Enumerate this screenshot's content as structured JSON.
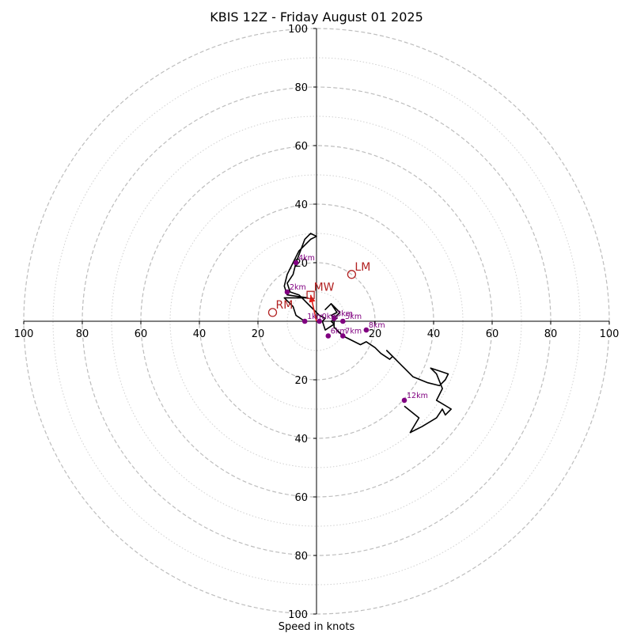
{
  "chart_data": {
    "type": "hodograph",
    "title": "KBIS 12Z - Friday August 01 2025",
    "xlabel": "Speed in knots",
    "ylabel": "",
    "xlim": [
      -100,
      100
    ],
    "ylim": [
      -100,
      100
    ],
    "grid": true,
    "major_rings": [
      20,
      40,
      60,
      80,
      100
    ],
    "minor_rings": [
      10,
      30,
      50,
      70,
      90
    ],
    "x_ticks": [
      "100",
      "80",
      "60",
      "40",
      "20",
      "20",
      "40",
      "60",
      "80",
      "100"
    ],
    "x_tick_values": [
      -100,
      -80,
      -60,
      -40,
      -20,
      20,
      40,
      60,
      80,
      100
    ],
    "y_ticks": [
      "100",
      "80",
      "60",
      "40",
      "20",
      "20",
      "40",
      "60",
      "80",
      "100"
    ],
    "y_tick_values": [
      100,
      80,
      60,
      40,
      20,
      -20,
      -40,
      -60,
      -80,
      -100
    ],
    "hodograph_trace": [
      [
        -4,
        0
      ],
      [
        -7,
        2
      ],
      [
        -8,
        5
      ],
      [
        -11,
        8
      ],
      [
        -3,
        8
      ],
      [
        -10,
        9
      ],
      [
        -11,
        12
      ],
      [
        -10,
        16
      ],
      [
        -8,
        20
      ],
      [
        -6,
        24
      ],
      [
        -4,
        26
      ],
      [
        -2,
        28
      ],
      [
        0,
        29
      ],
      [
        -2,
        30
      ],
      [
        -3,
        29
      ],
      [
        -4,
        28
      ],
      [
        -7,
        20
      ],
      [
        -8,
        16
      ],
      [
        -10,
        13
      ],
      [
        -9,
        10
      ],
      [
        -6,
        9
      ],
      [
        -4,
        7
      ],
      [
        -2,
        5
      ],
      [
        0,
        3
      ],
      [
        1,
        2
      ],
      [
        3,
        1
      ],
      [
        2,
        0
      ],
      [
        3,
        -3
      ],
      [
        6,
        -1
      ],
      [
        5,
        0
      ],
      [
        7,
        1
      ],
      [
        5,
        2
      ],
      [
        7,
        3
      ],
      [
        5,
        6
      ],
      [
        3,
        4
      ],
      [
        5,
        6
      ],
      [
        6,
        5
      ],
      [
        7,
        4
      ],
      [
        8,
        3
      ],
      [
        6,
        1
      ],
      [
        6,
        -2
      ],
      [
        9,
        -5
      ],
      [
        15,
        -8
      ],
      [
        17,
        -7
      ],
      [
        20,
        -9
      ],
      [
        22,
        -11
      ],
      [
        25,
        -13
      ],
      [
        26,
        -12
      ],
      [
        24,
        -10
      ],
      [
        27,
        -13
      ],
      [
        30,
        -16
      ],
      [
        33,
        -19
      ],
      [
        38,
        -21
      ],
      [
        42,
        -22
      ],
      [
        44,
        -20
      ],
      [
        45,
        -18
      ],
      [
        42,
        -17
      ],
      [
        39,
        -16
      ],
      [
        41,
        -18
      ],
      [
        43,
        -23
      ],
      [
        41,
        -27
      ],
      [
        46,
        -30
      ],
      [
        44,
        -32
      ],
      [
        43,
        -30
      ],
      [
        41,
        -33
      ],
      [
        36,
        -36
      ],
      [
        32,
        -38
      ],
      [
        35,
        -33
      ],
      [
        30,
        -29
      ]
    ],
    "height_markers": [
      {
        "label": "0km",
        "x": 1,
        "y": 0
      },
      {
        "label": "1km",
        "x": -4,
        "y": 0
      },
      {
        "label": "2km",
        "x": -10,
        "y": 10
      },
      {
        "label": "3km",
        "x": 6,
        "y": 1
      },
      {
        "label": "4km",
        "x": -7,
        "y": 20
      },
      {
        "label": "5km",
        "x": 9,
        "y": 0
      },
      {
        "label": "6km",
        "x": 4,
        "y": -5
      },
      {
        "label": "7km",
        "x": 9,
        "y": -5
      },
      {
        "label": "8km",
        "x": 17,
        "y": -3
      },
      {
        "label": "12km",
        "x": 30,
        "y": -27
      }
    ],
    "storm_motions": [
      {
        "label": "RM",
        "x": -15,
        "y": 3
      },
      {
        "label": "LM",
        "x": 12,
        "y": 16
      },
      {
        "label": "MW",
        "x": -2,
        "y": 9
      }
    ],
    "shear_vector": {
      "from": [
        0,
        0
      ],
      "to": [
        -2,
        9
      ]
    }
  }
}
